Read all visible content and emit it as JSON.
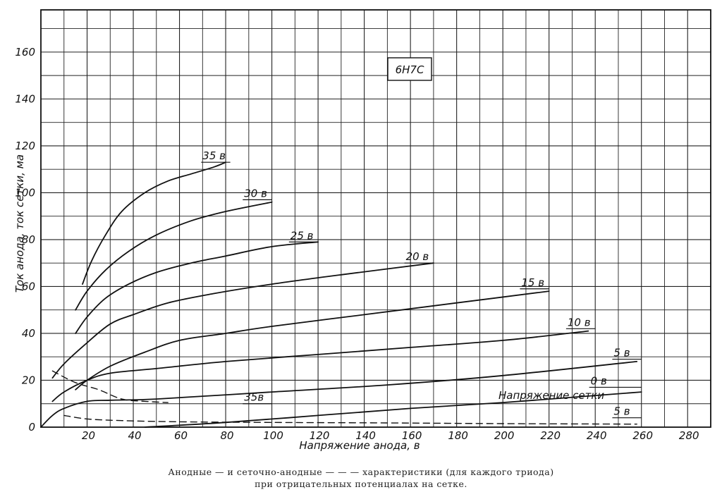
{
  "chart_data": {
    "type": "line",
    "title": "6Н7С",
    "xlabel": "Напряжение анода, в",
    "ylabel": "Ток анода, ток сетки, ма",
    "xlim": [
      0,
      290
    ],
    "ylim": [
      0,
      178
    ],
    "x_ticks": [
      "20",
      "40",
      "60",
      "80",
      "100",
      "120",
      "140",
      "160",
      "180",
      "200",
      "220",
      "240",
      "260",
      "280"
    ],
    "y_ticks": [
      "0",
      "20",
      "40",
      "60",
      "80",
      "100",
      "120",
      "140",
      "160"
    ],
    "grid": true,
    "grid_label": "Напряжение сетки",
    "series": [
      {
        "name": "35 в",
        "style": "solid",
        "label_at": [
          70,
          113
        ],
        "points": [
          [
            18,
            61
          ],
          [
            22,
            71
          ],
          [
            28,
            82
          ],
          [
            35,
            92
          ],
          [
            45,
            100
          ],
          [
            55,
            105
          ],
          [
            65,
            108
          ],
          [
            75,
            111
          ],
          [
            80,
            113
          ]
        ]
      },
      {
        "name": "30 в",
        "style": "solid",
        "label_at": [
          88,
          97
        ],
        "points": [
          [
            15,
            50
          ],
          [
            20,
            58
          ],
          [
            28,
            67
          ],
          [
            38,
            75
          ],
          [
            50,
            82
          ],
          [
            65,
            88
          ],
          [
            80,
            92
          ],
          [
            100,
            96
          ]
        ]
      },
      {
        "name": "25 в",
        "style": "solid",
        "label_at": [
          108,
          79
        ],
        "points": [
          [
            15,
            40
          ],
          [
            20,
            47
          ],
          [
            28,
            55
          ],
          [
            38,
            61
          ],
          [
            50,
            66
          ],
          [
            65,
            70
          ],
          [
            80,
            73
          ],
          [
            100,
            77
          ],
          [
            120,
            79
          ]
        ]
      },
      {
        "name": "20 в",
        "style": "solid",
        "label_at": [
          158,
          70
        ],
        "points": [
          [
            5,
            21
          ],
          [
            10,
            27
          ],
          [
            20,
            36
          ],
          [
            30,
            44
          ],
          [
            40,
            48
          ],
          [
            55,
            53
          ],
          [
            75,
            57
          ],
          [
            100,
            61
          ],
          [
            130,
            65
          ],
          [
            170,
            70
          ]
        ]
      },
      {
        "name": "15 в",
        "style": "solid",
        "label_at": [
          208,
          59
        ],
        "points": [
          [
            15,
            16
          ],
          [
            20,
            20
          ],
          [
            30,
            26
          ],
          [
            45,
            32
          ],
          [
            60,
            37
          ],
          [
            80,
            40
          ],
          [
            100,
            43
          ],
          [
            140,
            48
          ],
          [
            180,
            53
          ],
          [
            220,
            58
          ]
        ]
      },
      {
        "name": "10 в",
        "style": "solid",
        "label_at": [
          228,
          42
        ],
        "points": [
          [
            5,
            11
          ],
          [
            10,
            15
          ],
          [
            20,
            20
          ],
          [
            30,
            23
          ],
          [
            50,
            25
          ],
          [
            80,
            28
          ],
          [
            120,
            31
          ],
          [
            160,
            34
          ],
          [
            200,
            37
          ],
          [
            237,
            41
          ]
        ]
      },
      {
        "name": "5 в",
        "style": "solid",
        "label_at": [
          248,
          29
        ],
        "points": [
          [
            0,
            0
          ],
          [
            5,
            5
          ],
          [
            10,
            8
          ],
          [
            20,
            11
          ],
          [
            30,
            11.5
          ],
          [
            50,
            12
          ],
          [
            100,
            15
          ],
          [
            150,
            18
          ],
          [
            200,
            22
          ],
          [
            258,
            28
          ]
        ]
      },
      {
        "name": "0 в",
        "style": "solid",
        "label_at": [
          238,
          17
        ],
        "points": [
          [
            45,
            0
          ],
          [
            80,
            2
          ],
          [
            120,
            5
          ],
          [
            160,
            8
          ],
          [
            200,
            10.5
          ],
          [
            240,
            13.5
          ],
          [
            260,
            15
          ]
        ]
      },
      {
        "name": "35в",
        "style": "dashed",
        "label_at": [
          88,
          10
        ],
        "points": [
          [
            5,
            24
          ],
          [
            15,
            19
          ],
          [
            25,
            16
          ],
          [
            35,
            12
          ],
          [
            45,
            11
          ],
          [
            55,
            10.5
          ]
        ]
      },
      {
        "name": "5 в",
        "style": "dashed",
        "label_at": [
          248,
          4
        ],
        "points": [
          [
            10,
            5
          ],
          [
            20,
            3.5
          ],
          [
            35,
            2.8
          ],
          [
            60,
            2.3
          ],
          [
            100,
            2
          ],
          [
            150,
            1.8
          ],
          [
            200,
            1.5
          ],
          [
            258,
            1.3
          ]
        ]
      }
    ]
  },
  "caption": {
    "line1": "Анодные  — и  сеточно-анодные — — — характеристики  (для  каждого  триода)",
    "line2": "при отрицательных потенциалах на сетке."
  }
}
